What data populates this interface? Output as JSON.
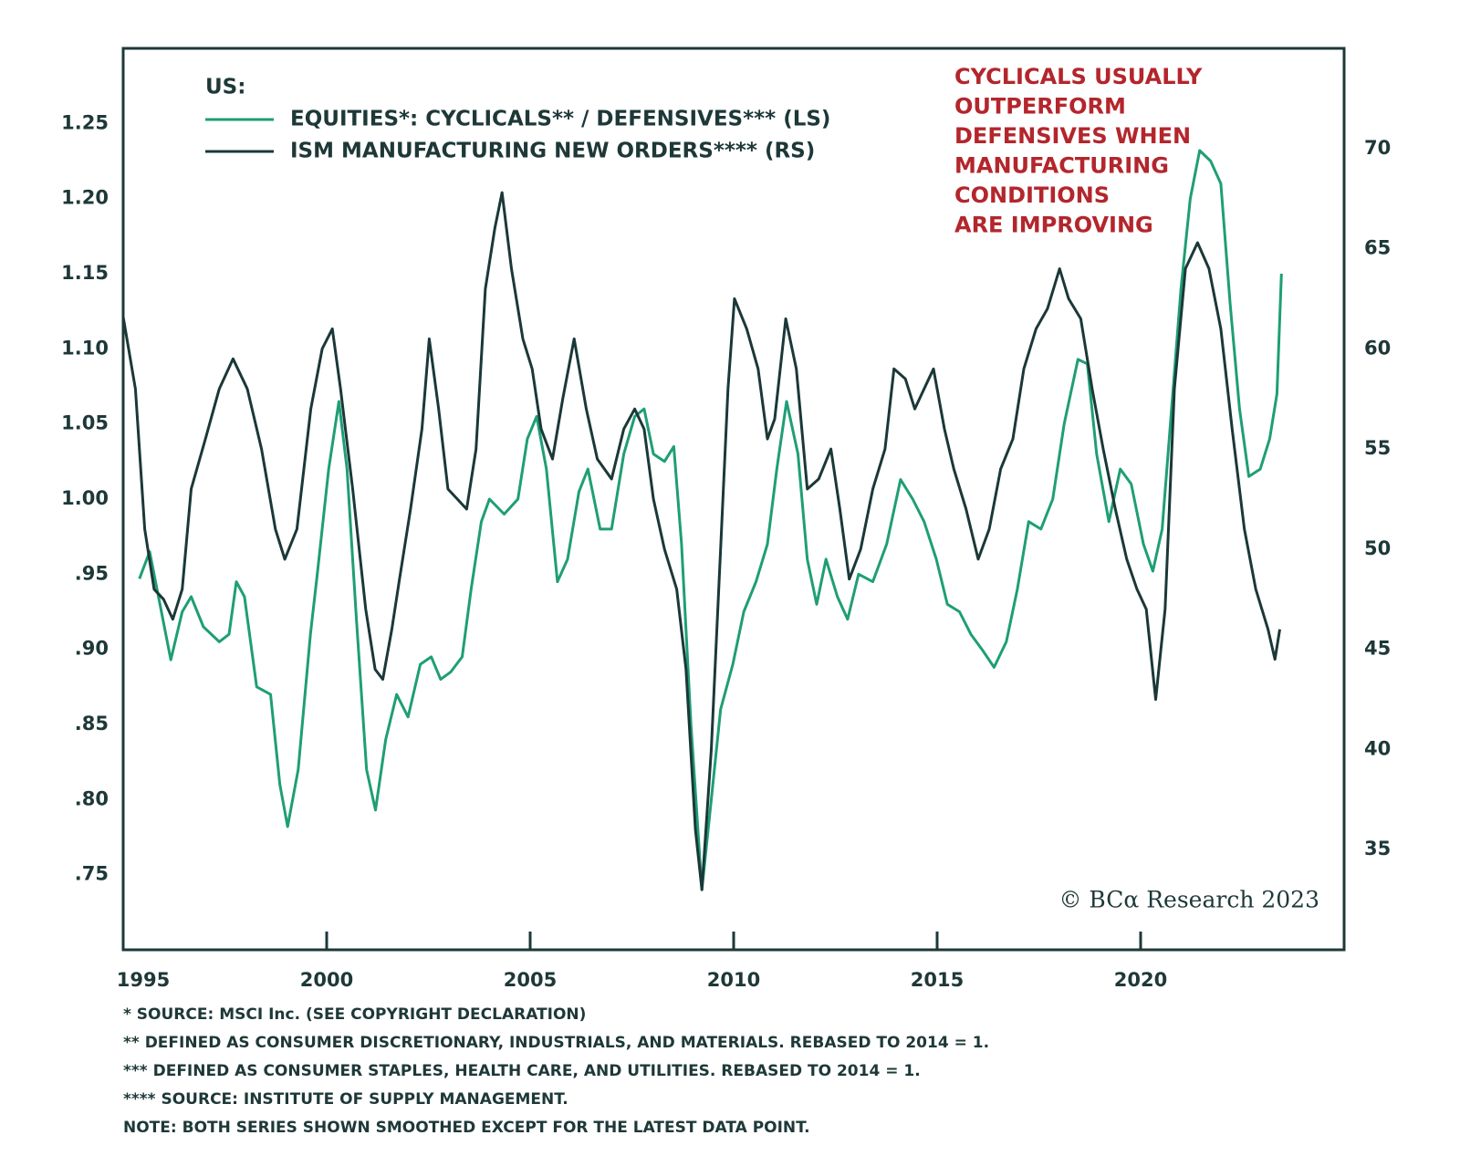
{
  "chart_data": {
    "type": "line",
    "legend_title": "US:",
    "annotation": [
      "CYCLICALS USUALLY",
      "OUTPERFORM",
      "DEFENSIVES WHEN",
      "MANUFACTURING",
      "CONDITIONS",
      "ARE IMPROVING"
    ],
    "copyright": "© BCα Research 2023",
    "footnotes": [
      "*   SOURCE: MSCI Inc. (SEE COPYRIGHT DECLARATION)",
      "**  DEFINED AS CONSUMER DISCRETIONARY, INDUSTRIALS, AND MATERIALS. REBASED TO 2014 = 1.",
      "***  DEFINED AS CONSUMER STAPLES, HEALTH CARE, AND UTILITIES. REBASED TO 2014 = 1.",
      "**** SOURCE: INSTITUTE OF SUPPLY MANAGEMENT.",
      "NOTE: BOTH SERIES SHOWN SMOOTHED EXCEPT FOR THE LATEST DATA POINT."
    ],
    "xlim": [
      1995,
      2025
    ],
    "xticks": [
      1995,
      2000,
      2005,
      2010,
      2015,
      2020
    ],
    "ylim": [
      0.7,
      1.3
    ],
    "yticks": [
      {
        "value": 0.75,
        "label": ".75"
      },
      {
        "value": 0.8,
        "label": ".80"
      },
      {
        "value": 0.85,
        "label": ".85"
      },
      {
        "value": 0.9,
        "label": ".90"
      },
      {
        "value": 0.95,
        "label": ".95"
      },
      {
        "value": 1,
        "label": "1.00"
      },
      {
        "value": 1.05,
        "label": "1.05"
      },
      {
        "value": 1.1,
        "label": "1.10"
      },
      {
        "value": 1.15,
        "label": "1.15"
      },
      {
        "value": 1.2,
        "label": "1.20"
      },
      1.25
    ],
    "y2lim": [
      30,
      75
    ],
    "y2ticks": [
      35,
      40,
      45,
      50,
      55,
      60,
      65,
      70
    ],
    "series": [
      {
        "name": "EQUITIES*: CYCLICALS** / DEFENSIVES*** (LS)",
        "color": "#1f9e75",
        "axis": "y",
        "x": [
          1995.4,
          1995.65,
          1996.17,
          1996.45,
          1996.67,
          1996.97,
          1997.36,
          1997.6,
          1997.78,
          1997.98,
          1998.28,
          1998.62,
          1998.85,
          1999.04,
          1999.3,
          1999.6,
          1999.77,
          2000.05,
          2000.3,
          2000.5,
          2000.73,
          2000.98,
          2001.2,
          2001.45,
          2001.72,
          2002.0,
          2002.3,
          2002.57,
          2002.8,
          2003.05,
          2003.33,
          2003.55,
          2003.8,
          2004.0,
          2004.36,
          2004.7,
          2004.93,
          2005.16,
          2005.4,
          2005.67,
          2005.92,
          2006.2,
          2006.42,
          2006.72,
          2007.0,
          2007.3,
          2007.57,
          2007.8,
          2008.03,
          2008.3,
          2008.53,
          2008.72,
          2008.95,
          2009.22,
          2009.45,
          2009.68,
          2009.98,
          2010.25,
          2010.55,
          2010.83,
          2011.06,
          2011.3,
          2011.58,
          2011.81,
          2012.04,
          2012.27,
          2012.55,
          2012.8,
          2013.07,
          2013.42,
          2013.76,
          2014.1,
          2014.4,
          2014.68,
          2014.98,
          2015.25,
          2015.55,
          2015.83,
          2016.1,
          2016.4,
          2016.7,
          2016.97,
          2017.25,
          2017.55,
          2017.84,
          2018.12,
          2018.46,
          2018.69,
          2018.92,
          2019.22,
          2019.5,
          2019.77,
          2020.07,
          2020.3,
          2020.53,
          2020.76,
          2020.99,
          2021.22,
          2021.45,
          2021.72,
          2021.97,
          2022.2,
          2022.43,
          2022.66,
          2022.94,
          2023.17,
          2023.35,
          2023.46
        ],
        "values": [
          0.947,
          0.965,
          0.893,
          0.925,
          0.935,
          0.915,
          0.905,
          0.91,
          0.945,
          0.935,
          0.875,
          0.87,
          0.81,
          0.782,
          0.82,
          0.91,
          0.95,
          1.02,
          1.065,
          1.02,
          0.92,
          0.82,
          0.793,
          0.84,
          0.87,
          0.855,
          0.89,
          0.895,
          0.88,
          0.885,
          0.895,
          0.94,
          0.985,
          1.0,
          0.99,
          1.0,
          1.04,
          1.055,
          1.02,
          0.945,
          0.96,
          1.005,
          1.02,
          0.98,
          0.98,
          1.03,
          1.055,
          1.06,
          1.03,
          1.025,
          1.035,
          0.97,
          0.85,
          0.74,
          0.8,
          0.86,
          0.89,
          0.925,
          0.945,
          0.97,
          1.02,
          1.065,
          1.03,
          0.96,
          0.93,
          0.96,
          0.935,
          0.92,
          0.95,
          0.945,
          0.97,
          1.013,
          1.0,
          0.985,
          0.96,
          0.93,
          0.925,
          0.91,
          0.9,
          0.888,
          0.905,
          0.94,
          0.985,
          0.98,
          1.0,
          1.05,
          1.093,
          1.09,
          1.03,
          0.985,
          1.02,
          1.01,
          0.97,
          0.952,
          0.98,
          1.06,
          1.14,
          1.2,
          1.232,
          1.225,
          1.21,
          1.13,
          1.06,
          1.015,
          1.02,
          1.04,
          1.07,
          1.15
        ]
      },
      {
        "name": "ISM MANUFACTURING NEW ORDERS**** (RS)",
        "color": "#1b3838",
        "axis": "y2",
        "x": [
          1995.0,
          1995.3,
          1995.53,
          1995.76,
          1995.99,
          1996.22,
          1996.45,
          1996.67,
          1997.02,
          1997.36,
          1997.7,
          1998.05,
          1998.4,
          1998.74,
          1998.97,
          1999.27,
          1999.61,
          1999.89,
          2000.14,
          2000.34,
          2000.64,
          2000.96,
          2001.19,
          2001.38,
          2001.6,
          2001.79,
          2002.06,
          2002.34,
          2002.52,
          2002.75,
          2002.98,
          2003.21,
          2003.44,
          2003.67,
          2003.9,
          2004.13,
          2004.31,
          2004.54,
          2004.82,
          2005.05,
          2005.27,
          2005.55,
          2005.8,
          2006.08,
          2006.38,
          2006.65,
          2007.0,
          2007.3,
          2007.57,
          2007.8,
          2008.03,
          2008.3,
          2008.6,
          2008.83,
          2009.06,
          2009.22,
          2009.45,
          2009.68,
          2009.86,
          2010.02,
          2010.32,
          2010.6,
          2010.83,
          2011.01,
          2011.28,
          2011.54,
          2011.81,
          2012.09,
          2012.39,
          2012.61,
          2012.84,
          2013.12,
          2013.42,
          2013.72,
          2013.94,
          2014.22,
          2014.45,
          2014.68,
          2014.91,
          2015.18,
          2015.41,
          2015.71,
          2016.01,
          2016.28,
          2016.56,
          2016.86,
          2017.13,
          2017.43,
          2017.71,
          2018.01,
          2018.23,
          2018.53,
          2018.81,
          2019.08,
          2019.38,
          2019.66,
          2019.91,
          2020.14,
          2020.37,
          2020.6,
          2020.83,
          2021.1,
          2021.4,
          2021.68,
          2021.97,
          2022.25,
          2022.55,
          2022.83,
          2023.13,
          2023.3,
          2023.42
        ],
        "values": [
          61.6,
          58,
          51,
          48,
          47.5,
          46.5,
          48,
          53,
          55.5,
          58,
          59.5,
          58,
          55,
          51,
          49.5,
          51,
          57,
          60,
          61,
          58,
          53,
          47,
          44,
          43.5,
          46,
          48.5,
          52,
          56,
          60.5,
          57,
          53,
          52.5,
          52,
          55,
          63,
          66,
          67.8,
          64,
          60.5,
          59,
          56,
          54.5,
          57.5,
          60.5,
          57,
          54.5,
          53.5,
          56,
          57,
          56,
          52.5,
          50,
          48,
          44,
          36,
          33,
          40,
          50,
          58,
          62.5,
          61,
          59,
          55.5,
          56.5,
          61.5,
          59,
          53,
          53.5,
          55,
          52,
          48.5,
          50,
          53,
          55,
          59,
          58.5,
          57,
          58,
          59,
          56,
          54,
          52,
          49.5,
          51,
          54,
          55.5,
          59,
          61,
          62,
          64,
          62.5,
          61.5,
          58,
          55,
          52,
          49.5,
          48,
          47,
          42.5,
          47,
          58,
          64,
          65.3,
          64,
          61,
          56,
          51,
          48,
          46,
          44.5,
          46
        ]
      }
    ]
  }
}
